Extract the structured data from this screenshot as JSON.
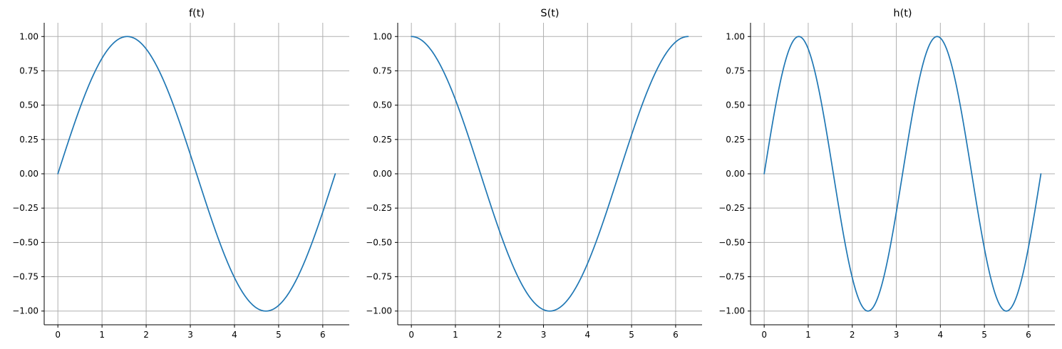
{
  "chart_data": [
    {
      "type": "line",
      "title": "f(t)",
      "function": "sin(t)",
      "x_range": [
        0,
        6.283
      ],
      "xlim": [
        -0.31,
        6.6
      ],
      "ylim": [
        -1.1,
        1.1
      ],
      "xticks": [
        0,
        1,
        2,
        3,
        4,
        5,
        6
      ],
      "xtick_labels": [
        "0",
        "1",
        "2",
        "3",
        "4",
        "5",
        "6"
      ],
      "yticks": [
        -1,
        -0.75,
        -0.5,
        -0.25,
        0,
        0.25,
        0.5,
        0.75,
        1
      ],
      "ytick_labels": [
        "−1.00",
        "−0.75",
        "−0.50",
        "−0.25",
        "0.00",
        "0.25",
        "0.50",
        "0.75",
        "1.00"
      ],
      "grid": true,
      "color": "#1f77b4"
    },
    {
      "type": "line",
      "title": "S(t)",
      "function": "cos(t)",
      "x_range": [
        0,
        6.283
      ],
      "xlim": [
        -0.31,
        6.6
      ],
      "ylim": [
        -1.1,
        1.1
      ],
      "xticks": [
        0,
        1,
        2,
        3,
        4,
        5,
        6
      ],
      "xtick_labels": [
        "0",
        "1",
        "2",
        "3",
        "4",
        "5",
        "6"
      ],
      "yticks": [
        -1,
        -0.75,
        -0.5,
        -0.25,
        0,
        0.25,
        0.5,
        0.75,
        1
      ],
      "ytick_labels": [
        "−1.00",
        "−0.75",
        "−0.50",
        "−0.25",
        "0.00",
        "0.25",
        "0.50",
        "0.75",
        "1.00"
      ],
      "grid": true,
      "color": "#1f77b4"
    },
    {
      "type": "line",
      "title": "h(t)",
      "function": "sin(2t)",
      "x_range": [
        0,
        6.283
      ],
      "xlim": [
        -0.31,
        6.6
      ],
      "ylim": [
        -1.1,
        1.1
      ],
      "xticks": [
        0,
        1,
        2,
        3,
        4,
        5,
        6
      ],
      "xtick_labels": [
        "0",
        "1",
        "2",
        "3",
        "4",
        "5",
        "6"
      ],
      "yticks": [
        -1,
        -0.75,
        -0.5,
        -0.25,
        0,
        0.25,
        0.5,
        0.75,
        1
      ],
      "ytick_labels": [
        "−1.00",
        "−0.75",
        "−0.50",
        "−0.25",
        "0.00",
        "0.25",
        "0.50",
        "0.75",
        "1.00"
      ],
      "grid": true,
      "color": "#1f77b4"
    }
  ]
}
